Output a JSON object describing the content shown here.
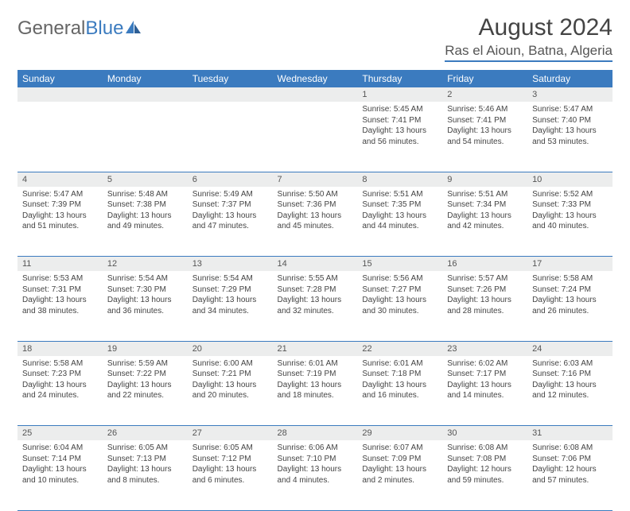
{
  "brand": {
    "name_part1": "General",
    "name_part2": "Blue"
  },
  "title": "August 2024",
  "location": "Ras el Aioun, Batna, Algeria",
  "colors": {
    "header_bg": "#3b7bbf",
    "daynum_bg": "#eceded",
    "text": "#444444",
    "rule": "#3b7bbf"
  },
  "day_headers": [
    "Sunday",
    "Monday",
    "Tuesday",
    "Wednesday",
    "Thursday",
    "Friday",
    "Saturday"
  ],
  "weeks": [
    [
      null,
      null,
      null,
      null,
      {
        "n": "1",
        "sr": "5:45 AM",
        "ss": "7:41 PM",
        "dl": "13 hours and 56 minutes."
      },
      {
        "n": "2",
        "sr": "5:46 AM",
        "ss": "7:41 PM",
        "dl": "13 hours and 54 minutes."
      },
      {
        "n": "3",
        "sr": "5:47 AM",
        "ss": "7:40 PM",
        "dl": "13 hours and 53 minutes."
      }
    ],
    [
      {
        "n": "4",
        "sr": "5:47 AM",
        "ss": "7:39 PM",
        "dl": "13 hours and 51 minutes."
      },
      {
        "n": "5",
        "sr": "5:48 AM",
        "ss": "7:38 PM",
        "dl": "13 hours and 49 minutes."
      },
      {
        "n": "6",
        "sr": "5:49 AM",
        "ss": "7:37 PM",
        "dl": "13 hours and 47 minutes."
      },
      {
        "n": "7",
        "sr": "5:50 AM",
        "ss": "7:36 PM",
        "dl": "13 hours and 45 minutes."
      },
      {
        "n": "8",
        "sr": "5:51 AM",
        "ss": "7:35 PM",
        "dl": "13 hours and 44 minutes."
      },
      {
        "n": "9",
        "sr": "5:51 AM",
        "ss": "7:34 PM",
        "dl": "13 hours and 42 minutes."
      },
      {
        "n": "10",
        "sr": "5:52 AM",
        "ss": "7:33 PM",
        "dl": "13 hours and 40 minutes."
      }
    ],
    [
      {
        "n": "11",
        "sr": "5:53 AM",
        "ss": "7:31 PM",
        "dl": "13 hours and 38 minutes."
      },
      {
        "n": "12",
        "sr": "5:54 AM",
        "ss": "7:30 PM",
        "dl": "13 hours and 36 minutes."
      },
      {
        "n": "13",
        "sr": "5:54 AM",
        "ss": "7:29 PM",
        "dl": "13 hours and 34 minutes."
      },
      {
        "n": "14",
        "sr": "5:55 AM",
        "ss": "7:28 PM",
        "dl": "13 hours and 32 minutes."
      },
      {
        "n": "15",
        "sr": "5:56 AM",
        "ss": "7:27 PM",
        "dl": "13 hours and 30 minutes."
      },
      {
        "n": "16",
        "sr": "5:57 AM",
        "ss": "7:26 PM",
        "dl": "13 hours and 28 minutes."
      },
      {
        "n": "17",
        "sr": "5:58 AM",
        "ss": "7:24 PM",
        "dl": "13 hours and 26 minutes."
      }
    ],
    [
      {
        "n": "18",
        "sr": "5:58 AM",
        "ss": "7:23 PM",
        "dl": "13 hours and 24 minutes."
      },
      {
        "n": "19",
        "sr": "5:59 AM",
        "ss": "7:22 PM",
        "dl": "13 hours and 22 minutes."
      },
      {
        "n": "20",
        "sr": "6:00 AM",
        "ss": "7:21 PM",
        "dl": "13 hours and 20 minutes."
      },
      {
        "n": "21",
        "sr": "6:01 AM",
        "ss": "7:19 PM",
        "dl": "13 hours and 18 minutes."
      },
      {
        "n": "22",
        "sr": "6:01 AM",
        "ss": "7:18 PM",
        "dl": "13 hours and 16 minutes."
      },
      {
        "n": "23",
        "sr": "6:02 AM",
        "ss": "7:17 PM",
        "dl": "13 hours and 14 minutes."
      },
      {
        "n": "24",
        "sr": "6:03 AM",
        "ss": "7:16 PM",
        "dl": "13 hours and 12 minutes."
      }
    ],
    [
      {
        "n": "25",
        "sr": "6:04 AM",
        "ss": "7:14 PM",
        "dl": "13 hours and 10 minutes."
      },
      {
        "n": "26",
        "sr": "6:05 AM",
        "ss": "7:13 PM",
        "dl": "13 hours and 8 minutes."
      },
      {
        "n": "27",
        "sr": "6:05 AM",
        "ss": "7:12 PM",
        "dl": "13 hours and 6 minutes."
      },
      {
        "n": "28",
        "sr": "6:06 AM",
        "ss": "7:10 PM",
        "dl": "13 hours and 4 minutes."
      },
      {
        "n": "29",
        "sr": "6:07 AM",
        "ss": "7:09 PM",
        "dl": "13 hours and 2 minutes."
      },
      {
        "n": "30",
        "sr": "6:08 AM",
        "ss": "7:08 PM",
        "dl": "12 hours and 59 minutes."
      },
      {
        "n": "31",
        "sr": "6:08 AM",
        "ss": "7:06 PM",
        "dl": "12 hours and 57 minutes."
      }
    ]
  ],
  "labels": {
    "sunrise": "Sunrise:",
    "sunset": "Sunset:",
    "daylight": "Daylight:"
  }
}
